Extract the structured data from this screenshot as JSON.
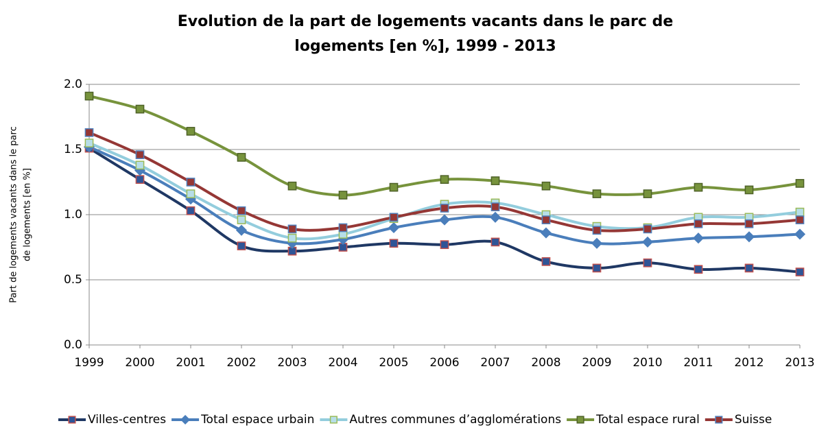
{
  "chart_data": {
    "type": "line",
    "title": [
      "Evolution de la part de logements vacants dans le parc de",
      "logements [en %], 1999 - 2013"
    ],
    "ylabel": [
      "Part de logements vacants dans le parc",
      "de logements [en %]"
    ],
    "categories": [
      "1999",
      "2000",
      "2001",
      "2002",
      "2003",
      "2004",
      "2005",
      "2006",
      "2007",
      "2008",
      "2009",
      "2010",
      "2011",
      "2012",
      "2013"
    ],
    "ylim": [
      0,
      2
    ],
    "yticks": [
      {
        "value": 0,
        "label": "0.0"
      },
      {
        "value": 0.5,
        "label": "0.5"
      },
      {
        "value": 1,
        "label": "1.0"
      },
      {
        "value": 1.5,
        "label": "1.5"
      },
      {
        "value": 2,
        "label": "2.0"
      }
    ],
    "grid": true,
    "smooth": true,
    "legend": "bottom",
    "series": [
      {
        "name": "Villes-centres",
        "color": "#1f3864",
        "marker": "square",
        "marker_color": "#2f5597",
        "marker_edge": "#c0504d",
        "values": [
          1.51,
          1.27,
          1.03,
          0.76,
          0.72,
          0.75,
          0.78,
          0.77,
          0.79,
          0.64,
          0.59,
          0.63,
          0.58,
          0.59,
          0.56
        ]
      },
      {
        "name": "Total espace urbain",
        "color": "#4a7ebb",
        "marker": "diamond",
        "marker_color": "#4a7ebb",
        "marker_edge": "#4a7ebb",
        "values": [
          1.52,
          1.34,
          1.12,
          0.88,
          0.78,
          0.81,
          0.9,
          0.96,
          0.98,
          0.86,
          0.78,
          0.79,
          0.82,
          0.83,
          0.85
        ]
      },
      {
        "name": "Autres communes d’agglomérations",
        "color": "#93cddd",
        "marker": "square",
        "marker_color": "#b7dee8",
        "marker_edge": "#9bbb59",
        "values": [
          1.55,
          1.38,
          1.16,
          0.96,
          0.82,
          0.85,
          0.97,
          1.08,
          1.09,
          1.0,
          0.91,
          0.9,
          0.98,
          0.98,
          1.02
        ]
      },
      {
        "name": "Total espace rural",
        "color": "#77933c",
        "marker": "square",
        "marker_color": "#77933c",
        "marker_edge": "#4f6228",
        "values": [
          1.91,
          1.81,
          1.64,
          1.44,
          1.22,
          1.15,
          1.21,
          1.27,
          1.26,
          1.22,
          1.16,
          1.16,
          1.21,
          1.19,
          1.24
        ]
      },
      {
        "name": "Suisse",
        "color": "#953735",
        "marker": "square",
        "marker_color": "#953735",
        "marker_edge": "#4f81bd",
        "values": [
          1.63,
          1.46,
          1.25,
          1.03,
          0.89,
          0.9,
          0.98,
          1.05,
          1.06,
          0.96,
          0.88,
          0.89,
          0.93,
          0.93,
          0.96
        ]
      }
    ]
  }
}
